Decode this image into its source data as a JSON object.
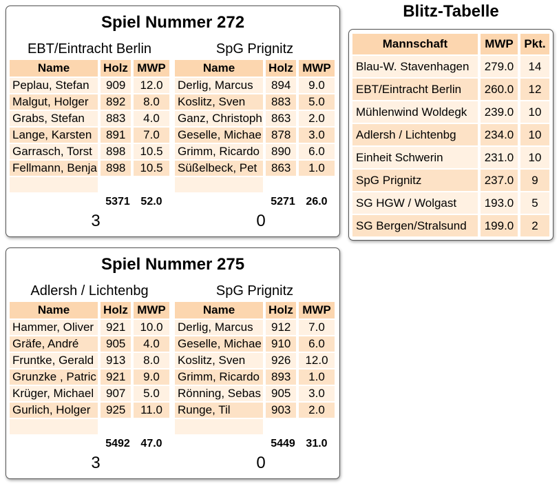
{
  "games": [
    {
      "title": "Spiel Nummer 272",
      "teams": [
        {
          "name": "EBT/Eintracht Berlin",
          "columns": [
            "Name",
            "Holz",
            "MWP"
          ],
          "rows": [
            [
              "Peplau, Stefan",
              "909",
              "12.0"
            ],
            [
              "Malgut, Holger",
              "892",
              "8.0"
            ],
            [
              "Grabs, Stefan",
              "883",
              "4.0"
            ],
            [
              "Lange, Karsten",
              "891",
              "7.0"
            ],
            [
              "Garrasch, Torst",
              "898",
              "10.5"
            ],
            [
              "Fellmann, Benja",
              "898",
              "10.5"
            ]
          ],
          "total_holz": "5371",
          "total_mwp": "52.0",
          "score": "3"
        },
        {
          "name": "SpG Prignitz",
          "columns": [
            "Name",
            "Holz",
            "MWP"
          ],
          "rows": [
            [
              "Derlig, Marcus",
              "894",
              "9.0"
            ],
            [
              "Koslitz, Sven",
              "883",
              "5.0"
            ],
            [
              "Ganz, Christoph",
              "863",
              "2.0"
            ],
            [
              "Geselle, Michae",
              "878",
              "3.0"
            ],
            [
              "Grimm, Ricardo",
              "890",
              "6.0"
            ],
            [
              "Süßelbeck, Pet",
              "863",
              "1.0"
            ]
          ],
          "total_holz": "5271",
          "total_mwp": "26.0",
          "score": "0"
        }
      ]
    },
    {
      "title": "Spiel Nummer 275",
      "teams": [
        {
          "name": "Adlersh / Lichtenbg",
          "columns": [
            "Name",
            "Holz",
            "MWP"
          ],
          "rows": [
            [
              "Hammer, Oliver",
              "921",
              "10.0"
            ],
            [
              "Gräfe, André",
              "905",
              "4.0"
            ],
            [
              "Fruntke, Gerald",
              "913",
              "8.0"
            ],
            [
              "Grunzke , Patric",
              "921",
              "9.0"
            ],
            [
              "Krüger, Michael",
              "907",
              "5.0"
            ],
            [
              "Gurlich, Holger",
              "925",
              "11.0"
            ]
          ],
          "total_holz": "5492",
          "total_mwp": "47.0",
          "score": "3"
        },
        {
          "name": "SpG Prignitz",
          "columns": [
            "Name",
            "Holz",
            "MWP"
          ],
          "rows": [
            [
              "Derlig, Marcus",
              "912",
              "7.0"
            ],
            [
              "Geselle, Michae",
              "910",
              "6.0"
            ],
            [
              "Koslitz, Sven",
              "926",
              "12.0"
            ],
            [
              "Grimm, Ricardo",
              "893",
              "1.0"
            ],
            [
              "Rönning, Sebas",
              "905",
              "3.0"
            ],
            [
              "Runge, Til",
              "903",
              "2.0"
            ]
          ],
          "total_holz": "5449",
          "total_mwp": "31.0",
          "score": "0"
        }
      ]
    }
  ],
  "standings": {
    "title": "Blitz-Tabelle",
    "columns": [
      "Mannschaft",
      "MWP",
      "Pkt."
    ],
    "rows": [
      [
        "Blau-W. Stavenhagen",
        "279.0",
        "14"
      ],
      [
        "EBT/Eintracht Berlin",
        "260.0",
        "12"
      ],
      [
        "Mühlenwind Woldegk",
        "239.0",
        "10"
      ],
      [
        "Adlersh / Lichtenbg",
        "234.0",
        "10"
      ],
      [
        "Einheit Schwerin",
        "231.0",
        "10"
      ],
      [
        "SpG Prignitz",
        "237.0",
        "9"
      ],
      [
        "SG HGW / Wolgast",
        "193.0",
        "5"
      ],
      [
        "SG Bergen/Stralsund",
        "199.0",
        "2"
      ]
    ]
  }
}
